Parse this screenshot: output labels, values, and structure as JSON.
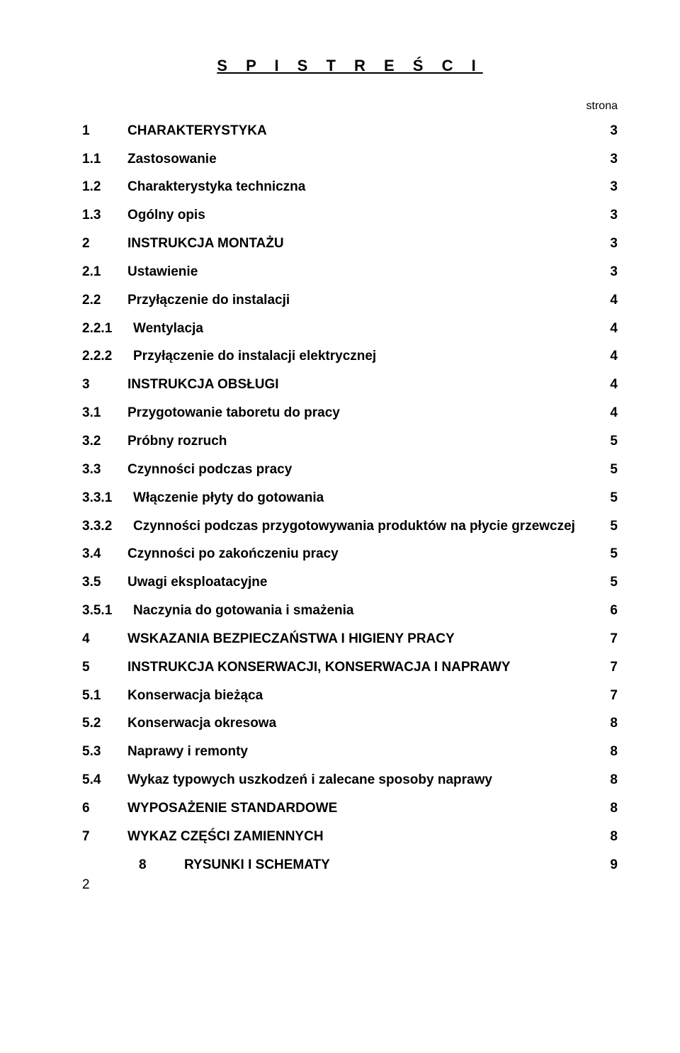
{
  "title": "S P I S   T R E Ś C I",
  "page_label": "strona",
  "font_sizes": {
    "title_pt": 17,
    "body_pt": 14.5,
    "strona_pt": 12
  },
  "colors": {
    "text": "#000000",
    "background": "#ffffff"
  },
  "toc": {
    "r1": {
      "num": "1",
      "label": "CHARAKTERYSTYKA",
      "page": "3"
    },
    "r2": {
      "num": "1.1",
      "label": "Zastosowanie",
      "page": "3"
    },
    "r3": {
      "num": "1.2",
      "label": "Charakterystyka techniczna",
      "page": "3"
    },
    "r4": {
      "num": "1.3",
      "label": "Ogólny opis",
      "page": "3"
    },
    "r5": {
      "num": "2",
      "label": "INSTRUKCJA MONTAŻU",
      "page": "3"
    },
    "r6": {
      "num": "2.1",
      "label": "Ustawienie",
      "page": "3"
    },
    "r7": {
      "num": "2.2",
      "label": "Przyłączenie do instalacji",
      "page": "4"
    },
    "r8": {
      "num": "2.2.1",
      "label": "Wentylacja",
      "page": "4"
    },
    "r9": {
      "num": "2.2.2",
      "label": "Przyłączenie do instalacji elektrycznej",
      "page": "4"
    },
    "r10": {
      "num": "3",
      "label": "INSTRUKCJA OBSŁUGI",
      "page": "4"
    },
    "r11": {
      "num": "3.1",
      "label": "Przygotowanie taboretu do pracy",
      "page": "4"
    },
    "r12": {
      "num": "3.2",
      "label": "Próbny rozruch",
      "page": "5"
    },
    "r13": {
      "num": "3.3",
      "label": "Czynności podczas pracy",
      "page": "5"
    },
    "r14": {
      "num": "3.3.1",
      "label": "Włączenie płyty do gotowania",
      "page": "5"
    },
    "r15": {
      "num": "3.3.2",
      "label": "Czynności podczas przygotowywania produktów na płycie grzewczej",
      "page": "5"
    },
    "r16": {
      "num": "3.4",
      "label": "Czynności po zakończeniu pracy",
      "page": "5"
    },
    "r17": {
      "num": "3.5",
      "label": "Uwagi eksploatacyjne",
      "page": "5"
    },
    "r18": {
      "num": "3.5.1",
      "label": "Naczynia do gotowania i smażenia",
      "page": "6"
    },
    "r19": {
      "num": "4",
      "label": "WSKAZANIA BEZPIECZAŃSTWA I HIGIENY PRACY",
      "page": "7"
    },
    "r20": {
      "num": "5",
      "label": "INSTRUKCJA KONSERWACJI, KONSERWACJA I NAPRAWY",
      "page": "7"
    },
    "r21": {
      "num": "5.1",
      "label": "Konserwacja bieżąca",
      "page": "7"
    },
    "r22": {
      "num": "5.2",
      "label": "Konserwacja okresowa",
      "page": "8"
    },
    "r23": {
      "num": "5.3",
      "label": "Naprawy i remonty",
      "page": "8"
    },
    "r24": {
      "num": "5.4",
      "label": "Wykaz typowych uszkodzeń i zalecane sposoby naprawy",
      "page": "8"
    },
    "r25": {
      "num": "6",
      "label": "WYPOSAŻENIE STANDARDOWE",
      "page": "8"
    },
    "r26": {
      "num": "7",
      "label": "WYKAZ CZĘŚCI ZAMIENNYCH",
      "page": "8"
    },
    "r27": {
      "num": "8",
      "label": "RYSUNKI I SCHEMATY",
      "page": "9"
    }
  },
  "footer_page_number": "2"
}
